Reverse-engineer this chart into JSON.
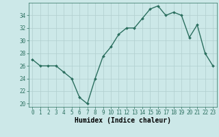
{
  "x": [
    0,
    1,
    2,
    3,
    4,
    5,
    6,
    7,
    8,
    9,
    10,
    11,
    12,
    13,
    14,
    15,
    16,
    17,
    18,
    19,
    20,
    21,
    22,
    23
  ],
  "y": [
    27,
    26,
    26,
    26,
    25,
    24,
    21,
    20,
    24,
    27.5,
    29,
    31,
    32,
    32,
    33.5,
    35,
    35.5,
    34,
    34.5,
    34,
    30.5,
    32.5,
    28,
    26
  ],
  "line_color": "#2a6e5e",
  "marker": "D",
  "marker_size": 2.0,
  "bg_color": "#cce8e8",
  "grid_color": "#b0cece",
  "xlabel": "Humidex (Indice chaleur)",
  "xlim": [
    -0.5,
    23.5
  ],
  "ylim": [
    19.5,
    36
  ],
  "yticks": [
    20,
    22,
    24,
    26,
    28,
    30,
    32,
    34
  ],
  "xticks": [
    0,
    1,
    2,
    3,
    4,
    5,
    6,
    7,
    8,
    9,
    10,
    11,
    12,
    13,
    14,
    15,
    16,
    17,
    18,
    19,
    20,
    21,
    22,
    23
  ],
  "tick_label_fontsize": 5.5,
  "xlabel_fontsize": 7.0,
  "line_width": 1.0
}
